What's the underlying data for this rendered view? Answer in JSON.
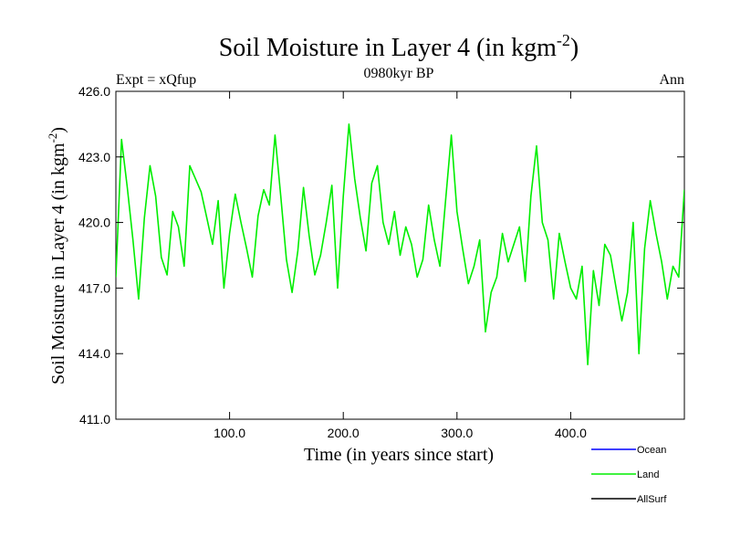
{
  "chart_data": {
    "type": "line",
    "title": "Soil Moisture in Layer 4 (in kgm",
    "title_superscript": "-2",
    "title_close": ")",
    "left_label": "Expt = xQfup",
    "center_label": "0980kyr BP",
    "right_label": "Ann",
    "xlabel": "Time (in years since start)",
    "ylabel": "Soil Moisture in Layer 4 (in kgm",
    "ylabel_superscript": "-2",
    "ylabel_close": ")",
    "xlim": [
      0,
      500
    ],
    "ylim": [
      411.0,
      426.0
    ],
    "x_ticks": [
      100,
      200,
      300,
      400
    ],
    "x_tick_labels": [
      "100.0",
      "200.0",
      "300.0",
      "400.0"
    ],
    "y_ticks": [
      411,
      414,
      417,
      420,
      423,
      426
    ],
    "y_tick_labels": [
      "411.0",
      "414.0",
      "417.0",
      "420.0",
      "423.0",
      "426.0"
    ],
    "legend": [
      {
        "name": "Ocean",
        "color": "#0000ff"
      },
      {
        "name": "Land",
        "color": "#00ee00"
      },
      {
        "name": "AllSurf",
        "color": "#000000"
      }
    ],
    "series": [
      {
        "name": "Land",
        "color": "#00ee00",
        "x": [
          0,
          5,
          10,
          15,
          20,
          25,
          30,
          35,
          40,
          45,
          50,
          55,
          60,
          65,
          70,
          75,
          80,
          85,
          90,
          95,
          100,
          105,
          110,
          115,
          120,
          125,
          130,
          135,
          140,
          145,
          150,
          155,
          160,
          165,
          170,
          175,
          180,
          185,
          190,
          195,
          200,
          205,
          210,
          215,
          220,
          225,
          230,
          235,
          240,
          245,
          250,
          255,
          260,
          265,
          270,
          275,
          280,
          285,
          290,
          295,
          300,
          305,
          310,
          315,
          320,
          325,
          330,
          335,
          340,
          345,
          350,
          355,
          360,
          365,
          370,
          375,
          380,
          385,
          390,
          395,
          400,
          405,
          410,
          415,
          420,
          425,
          430,
          435,
          440,
          445,
          450,
          455,
          460,
          465,
          470,
          475,
          480,
          485,
          490,
          495,
          500
        ],
        "values": [
          417.5,
          423.8,
          421.6,
          419.2,
          416.5,
          420.2,
          422.6,
          421.2,
          418.4,
          417.6,
          420.5,
          419.8,
          418.0,
          422.6,
          422.0,
          421.4,
          420.2,
          419.0,
          421.0,
          417.0,
          419.5,
          421.3,
          420.0,
          418.8,
          417.5,
          420.3,
          421.5,
          420.8,
          424.0,
          421.2,
          418.3,
          416.8,
          418.7,
          421.6,
          419.4,
          417.6,
          418.5,
          420.0,
          421.7,
          417.0,
          421.2,
          424.5,
          422.0,
          420.2,
          418.7,
          421.8,
          422.6,
          420.0,
          419.0,
          420.5,
          418.5,
          419.8,
          419.0,
          417.5,
          418.3,
          420.8,
          419.2,
          418.0,
          421.0,
          424.0,
          420.5,
          418.8,
          417.2,
          418.0,
          419.2,
          415.0,
          416.8,
          417.5,
          419.5,
          418.2,
          419.0,
          419.8,
          417.3,
          421.2,
          423.5,
          420.0,
          419.2,
          416.5,
          419.5,
          418.2,
          417.0,
          416.5,
          418.0,
          413.5,
          417.8,
          416.2,
          419.0,
          418.5,
          417.0,
          415.5,
          416.8,
          420.0,
          414.0,
          418.8,
          421.0,
          419.5,
          418.2,
          416.5,
          418.0,
          417.5,
          421.5
        ]
      }
    ]
  }
}
